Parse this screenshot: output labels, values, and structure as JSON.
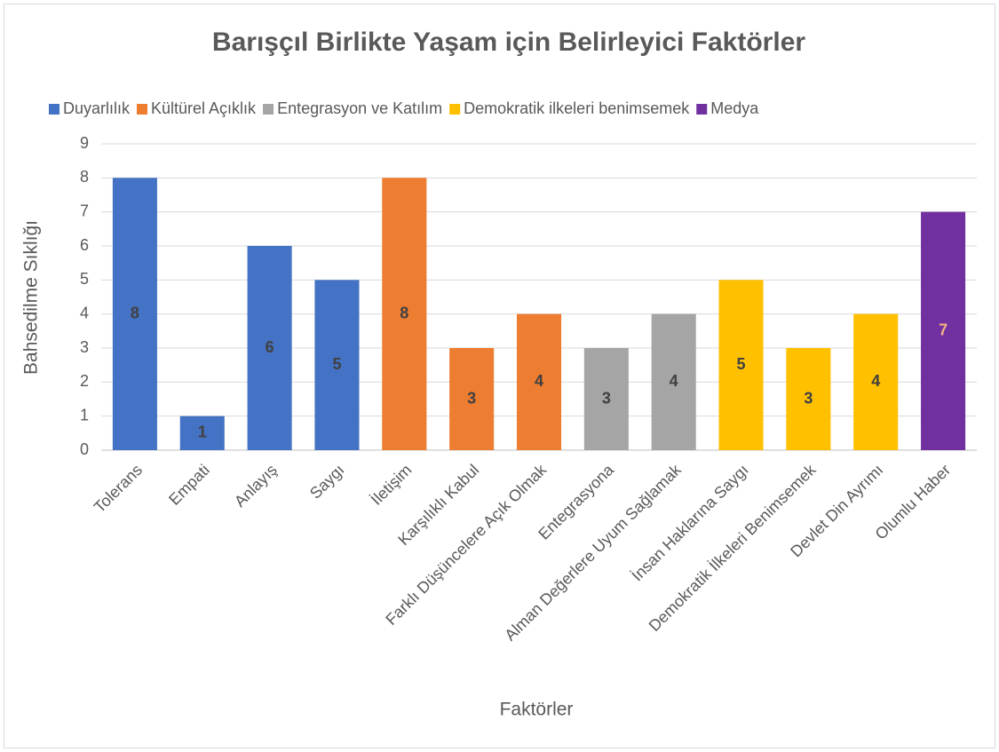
{
  "chart_data": {
    "type": "bar",
    "title": "Barışçıl Birlikte Yaşam için Belirleyici Faktörler",
    "x_label": "Faktörler",
    "y_label": "Bahsedilme Sıklığı",
    "categories": [
      "Tolerans",
      "Empati",
      "Anlayış",
      "Saygı",
      "İletişim",
      "Karşılıklı Kabul",
      "Farklı Düşüncelere Açık Olmak",
      "Entegrasyona",
      "Alman Değerlere Uyum Sağlamak",
      "İnsan Haklarına Saygı",
      "Demokratik İlkeleri Benimsemek",
      "Devlet Din Ayrımı",
      "Olumlu Haber"
    ],
    "series": [
      {
        "name": "Duyarlılık",
        "color": "#4472c4",
        "label_color": "#404040",
        "values": [
          8,
          1,
          6,
          5,
          null,
          null,
          null,
          null,
          null,
          null,
          null,
          null,
          null
        ]
      },
      {
        "name": "Kültürel Açıklık",
        "color": "#ed7d31",
        "label_color": "#404040",
        "values": [
          null,
          null,
          null,
          null,
          8,
          3,
          4,
          null,
          null,
          null,
          null,
          null,
          null
        ]
      },
      {
        "name": "Entegrasyon ve Katılım",
        "color": "#a5a5a5",
        "label_color": "#404040",
        "values": [
          null,
          null,
          null,
          null,
          null,
          null,
          null,
          3,
          4,
          null,
          null,
          null,
          null
        ]
      },
      {
        "name": "Demokratik ilkeleri benimsemek",
        "color": "#ffc000",
        "label_color": "#404040",
        "values": [
          null,
          null,
          null,
          null,
          null,
          null,
          null,
          null,
          null,
          5,
          3,
          4,
          null
        ]
      },
      {
        "name": "Medya",
        "color": "#7030a0",
        "label_color": "#f4b183",
        "values": [
          null,
          null,
          null,
          null,
          null,
          null,
          null,
          null,
          null,
          null,
          null,
          null,
          7
        ]
      }
    ],
    "ylim": [
      0,
      9
    ],
    "yticks": [
      0,
      1,
      2,
      3,
      4,
      5,
      6,
      7,
      8,
      9
    ],
    "grid": true,
    "legend": "top"
  }
}
